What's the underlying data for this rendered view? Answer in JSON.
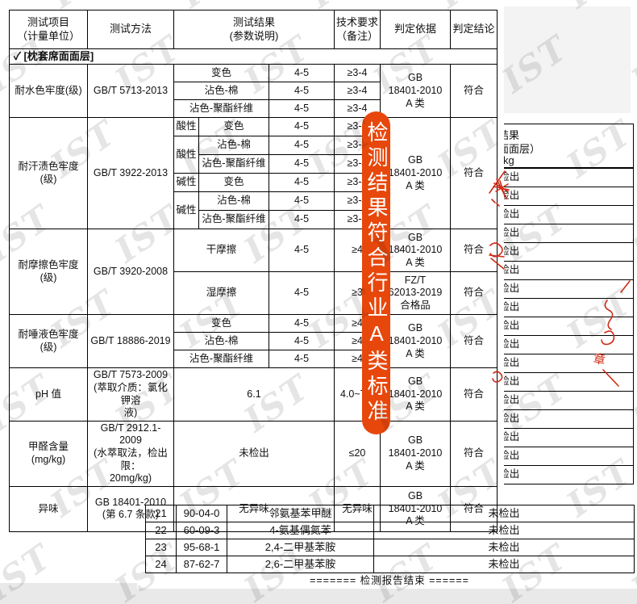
{
  "watermark": {
    "text": "IST"
  },
  "overlay_pill": {
    "text": "检测结果符合行业A类标准",
    "color": "#e8470b"
  },
  "main_table": {
    "header_cells": [
      {
        "t": "测试项目\n（计量单位）",
        "n": "col-header-test-item"
      },
      {
        "t": "测试方法",
        "n": "col-header-test-method"
      },
      {
        "t": "测试结果\n(参数说明)",
        "cs": 3,
        "n": "col-header-test-result"
      },
      {
        "t": "技术要求\n（备注）",
        "n": "col-header-tech-requirement"
      },
      {
        "t": "判定依据",
        "n": "col-header-judgment-basis"
      },
      {
        "t": "判定结论",
        "n": "col-header-conclusion"
      }
    ],
    "rows": [
      [
        {
          "t": "✓  [枕套席面面层]",
          "cs": 8,
          "cls": "section",
          "n": "section-row-label"
        }
      ],
      [
        {
          "t": "耐水色牢度(级)",
          "rs": 3
        },
        {
          "t": "GB/T 5713-2013",
          "rs": 3
        },
        {
          "t": "变色",
          "cs": 2
        },
        {
          "t": "4-5"
        },
        {
          "t": "≥3-4"
        },
        {
          "t": "GB\n18401-2010\nA 类",
          "rs": 3
        },
        {
          "t": "符合",
          "rs": 3
        }
      ],
      [
        {
          "t": "沾色-棉",
          "cs": 2
        },
        {
          "t": "4-5"
        },
        {
          "t": "≥3-4"
        }
      ],
      [
        {
          "t": "沾色-聚酯纤维",
          "cs": 2
        },
        {
          "t": "4-5"
        },
        {
          "t": "≥3-4"
        }
      ],
      [
        {
          "t": "耐汗渍色牢度\n(级)",
          "rs": 6
        },
        {
          "t": "GB/T 3922-2013",
          "rs": 6
        },
        {
          "t": "酸性"
        },
        {
          "t": "变色"
        },
        {
          "t": "4-5"
        },
        {
          "t": "≥3-4"
        },
        {
          "t": "GB\n18401-2010\nA 类",
          "rs": 6
        },
        {
          "t": "符合",
          "rs": 6
        }
      ],
      [
        {
          "t": "酸性",
          "rs": 2
        },
        {
          "t": "沾色-棉"
        },
        {
          "t": "4-5"
        },
        {
          "t": "≥3-4"
        }
      ],
      [
        {
          "t": "沾色-聚酯纤维"
        },
        {
          "t": "4-5"
        },
        {
          "t": "≥3-4"
        }
      ],
      [
        {
          "t": "碱性"
        },
        {
          "t": "变色"
        },
        {
          "t": "4-5"
        },
        {
          "t": "≥3-4"
        }
      ],
      [
        {
          "t": "碱性",
          "rs": 2
        },
        {
          "t": "沾色-棉"
        },
        {
          "t": "4-5"
        },
        {
          "t": "≥3-4"
        }
      ],
      [
        {
          "t": "沾色-聚酯纤维"
        },
        {
          "t": "4-5"
        },
        {
          "t": "≥3-4"
        }
      ],
      [
        {
          "t": "耐摩擦色牢度\n(级)",
          "rs": 2
        },
        {
          "t": "GB/T 3920-2008",
          "rs": 2
        },
        {
          "t": "干摩擦",
          "cs": 2
        },
        {
          "t": "4-5"
        },
        {
          "t": "≥4"
        },
        {
          "t": "GB\n18401-2010\nA 类"
        },
        {
          "t": "符合"
        }
      ],
      [
        {
          "t": "湿摩擦",
          "cs": 2
        },
        {
          "t": "4-5"
        },
        {
          "t": "≥3"
        },
        {
          "t": "FZ/T\n62013-2019\n合格品"
        },
        {
          "t": "符合"
        }
      ],
      [
        {
          "t": "耐唾液色牢度\n(级)",
          "rs": 3
        },
        {
          "t": "GB/T 18886-2019",
          "rs": 3
        },
        {
          "t": "变色",
          "cs": 2
        },
        {
          "t": "4-5"
        },
        {
          "t": "≥4"
        },
        {
          "t": "GB\n18401-2010\nA 类",
          "rs": 3
        },
        {
          "t": "符合",
          "rs": 3
        }
      ],
      [
        {
          "t": "沾色-棉",
          "cs": 2
        },
        {
          "t": "4-5"
        },
        {
          "t": "≥4"
        }
      ],
      [
        {
          "t": "沾色-聚酯纤维",
          "cs": 2
        },
        {
          "t": "4-5"
        },
        {
          "t": "≥4"
        }
      ],
      [
        {
          "t": "pH 值"
        },
        {
          "t": "GB/T 7573-2009\n(萃取介质：氯化钾溶\n液)"
        },
        {
          "t": "6.1",
          "cs": 3
        },
        {
          "t": "4.0~7.5"
        },
        {
          "t": "GB\n18401-2010\nA 类"
        },
        {
          "t": "符合"
        }
      ],
      [
        {
          "t": "甲醛含量\n(mg/kg)"
        },
        {
          "t": "GB/T 2912.1-2009\n(水萃取法，检出限：\n20mg/kg)"
        },
        {
          "t": "未检出",
          "cs": 3
        },
        {
          "t": "≤20"
        },
        {
          "t": "GB\n18401-2010\nA 类"
        },
        {
          "t": "符合"
        }
      ],
      [
        {
          "t": "异味"
        },
        {
          "t": "GB 18401-2010\n(第 6.7 条款)"
        },
        {
          "t": "无异味",
          "cs": 3
        },
        {
          "t": "无异味"
        },
        {
          "t": "GB\n18401-2010\nA 类"
        },
        {
          "t": "符合"
        }
      ]
    ]
  },
  "page2": {
    "header_fragments": [
      "结果",
      "面面层）",
      "kg"
    ],
    "hidden_rows": {
      "count": 17,
      "result": "未检出"
    },
    "visible_rows": [
      {
        "no": "21",
        "cas": "90-04-0",
        "name": "邻氨基苯甲醚",
        "result": "未检出"
      },
      {
        "no": "22",
        "cas": "60-09-3",
        "name": "4-氨基偶氮苯",
        "result": "未检出"
      },
      {
        "no": "23",
        "cas": "95-68-1",
        "name": "2,4-二甲基苯胺",
        "result": "未检出"
      },
      {
        "no": "24",
        "cas": "87-62-7",
        "name": "2,6-二甲基苯胺",
        "result": "未检出"
      }
    ],
    "footer": "======= 检测报告结束 ======"
  },
  "annotations": {
    "stamp_glyph": "章"
  }
}
